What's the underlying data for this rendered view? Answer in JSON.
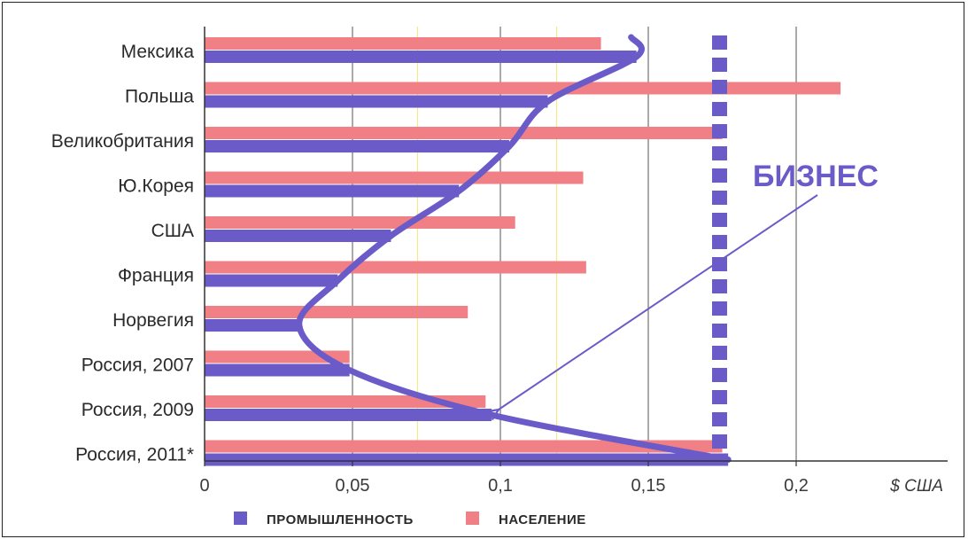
{
  "chart_data": {
    "type": "bar",
    "orientation": "horizontal",
    "categories": [
      "Мексика",
      "Польша",
      "Великобритания",
      "Ю.Корея",
      "США",
      "Франция",
      "Норвегия",
      "Россия, 2007",
      "Россия, 2009",
      "Россия, 2011*"
    ],
    "series": [
      {
        "name": "НАСЕЛЕНИЕ",
        "color": "#f07f86",
        "values": [
          0.134,
          0.215,
          0.175,
          0.128,
          0.105,
          0.129,
          0.089,
          0.049,
          0.095,
          0.175
        ]
      },
      {
        "name": "ПРОМЫШЛЕННОСТЬ",
        "color": "#6a5bc9",
        "values": [
          0.146,
          0.116,
          0.103,
          0.086,
          0.063,
          0.045,
          0.032,
          0.049,
          0.097,
          0.177
        ]
      }
    ],
    "xlim": [
      0,
      0.25
    ],
    "xticks": [
      "0",
      "0,05",
      "0,1",
      "0,15",
      "0,2"
    ],
    "xtick_values": [
      0,
      0.05,
      0.1,
      0.15,
      0.2
    ],
    "xlabel": "$ США",
    "reference_line": {
      "value": 0.175,
      "style": "dashed",
      "color": "#6a5bc9"
    },
    "annotation": {
      "text": "БИЗНЕС",
      "target_category": "Россия, 2009",
      "target_value": 0.097
    },
    "legend": {
      "position": "bottom"
    }
  }
}
